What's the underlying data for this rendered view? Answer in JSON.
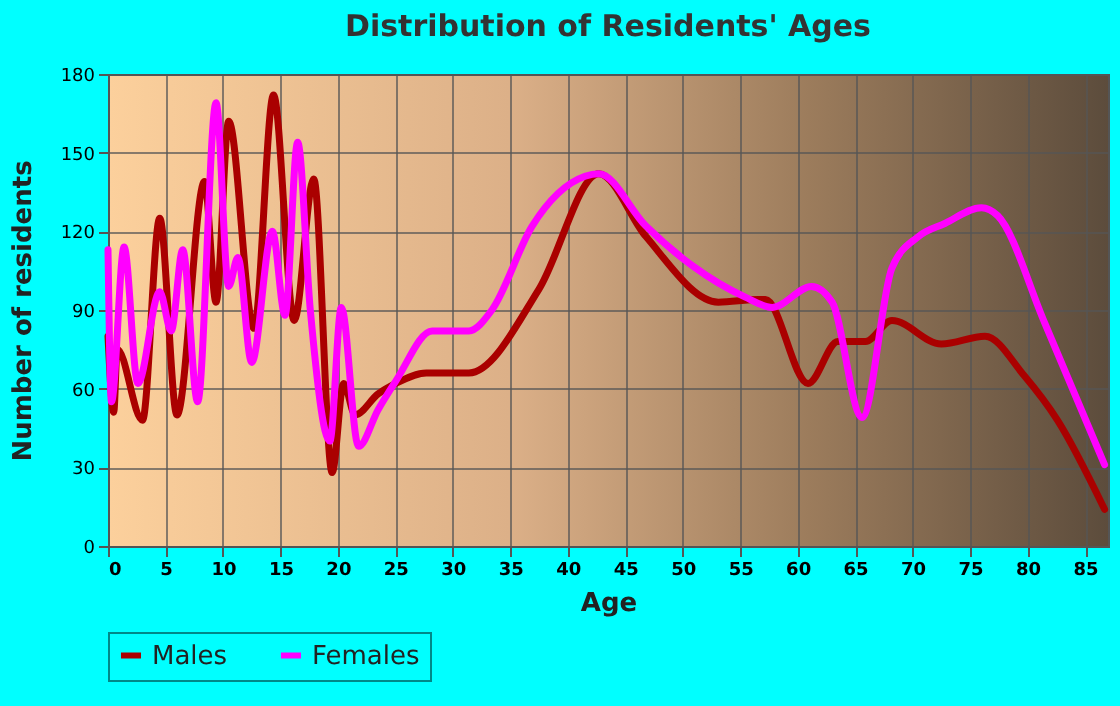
{
  "chart_data": {
    "type": "line",
    "title": "Distribution of Residents' Ages",
    "xlabel": "Age",
    "ylabel": "Number of residents",
    "xlim": [
      0,
      87
    ],
    "xticks": [
      0,
      5,
      10,
      15,
      20,
      25,
      30,
      35,
      40,
      45,
      50,
      55,
      60,
      65,
      70,
      75,
      80,
      85
    ],
    "ylim": [
      0,
      180
    ],
    "yticks": [
      0,
      30,
      60,
      90,
      120,
      150,
      180
    ],
    "grid": true,
    "legend": "bottom",
    "marker": "none",
    "line_style": "solid",
    "series": [
      {
        "name": "Males",
        "color": "#aa0000",
        "x": [
          0,
          0.5,
          0.8,
          3,
          4.5,
          6,
          8.4,
          9.4,
          10.5,
          12.7,
          14.4,
          16.2,
          17.9,
          19.5,
          20.5,
          21.5,
          23.5,
          25.05,
          27.7,
          31.4,
          37.5,
          42.7,
          46.8,
          53.1,
          56.6,
          57.2,
          60.9,
          63.5,
          65.9,
          68.2,
          72.5,
          76.3,
          79.7,
          82.6,
          86.7
        ],
        "values": [
          80,
          51,
          75,
          48,
          125,
          50,
          139,
          93,
          162,
          83,
          172,
          86,
          140,
          28,
          62,
          50,
          58,
          62,
          66,
          66,
          98,
          142,
          118,
          93,
          94,
          94,
          62,
          78,
          78,
          86,
          77,
          80,
          65,
          48,
          14
        ]
      },
      {
        "name": "Females",
        "color": "#ff00ff",
        "x": [
          0,
          0.3,
          1.4,
          2.6,
          4.5,
          5.5,
          6.5,
          7.8,
          9.4,
          10.5,
          11.3,
          12.5,
          14.3,
          15.4,
          16.5,
          17.6,
          19.3,
          20.3,
          21.8,
          23.5,
          25.05,
          28.2,
          31.4,
          33.4,
          36.9,
          41.5,
          42.7,
          46.8,
          50.8,
          55.4,
          57.8,
          61.2,
          63,
          65.6,
          68.2,
          70.5,
          72.8,
          76,
          77.4,
          81.5,
          86.7
        ],
        "values": [
          113,
          55,
          114,
          62,
          97,
          82,
          113,
          55,
          169,
          99,
          110,
          70,
          120,
          88,
          154,
          90,
          40,
          91,
          38,
          52,
          63,
          82,
          82,
          90,
          122,
          141,
          142,
          122,
          107,
          95,
          91,
          99,
          93,
          49,
          106,
          118,
          123,
          129,
          126,
          85,
          31
        ]
      }
    ]
  }
}
